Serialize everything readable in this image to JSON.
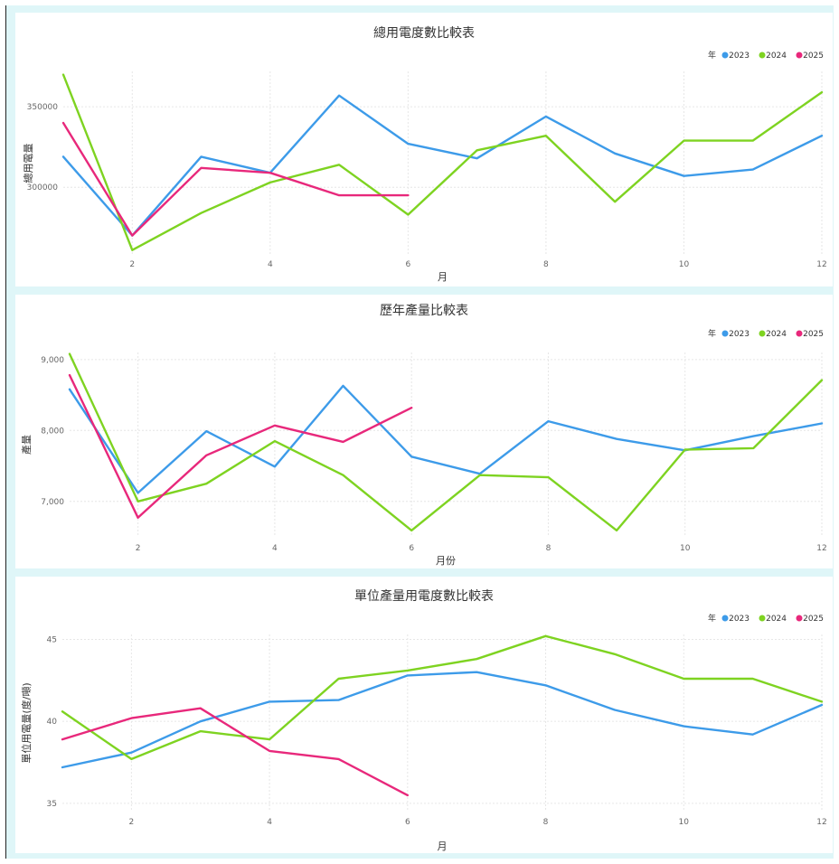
{
  "chart_data": [
    {
      "type": "line",
      "title": "總用電度數比較表",
      "xlabel": "月",
      "ylabel": "總用電量",
      "legend_title": "年",
      "xlim": [
        1,
        12
      ],
      "ylim": [
        258000,
        372000
      ],
      "x_ticks": [
        2,
        4,
        6,
        8,
        10,
        12
      ],
      "y_ticks": [
        300000,
        350000
      ],
      "y_tick_labels": [
        "300000",
        "350000"
      ],
      "grid": true,
      "legend_position": "top-right",
      "series": [
        {
          "name": "2023",
          "color": "#3d9be9",
          "x": [
            1,
            2,
            3,
            4,
            5,
            6,
            7,
            8,
            9,
            10,
            11,
            12
          ],
          "values": [
            319000,
            270000,
            319000,
            309000,
            357000,
            327000,
            318000,
            344000,
            321000,
            307000,
            311000,
            332000
          ]
        },
        {
          "name": "2024",
          "color": "#7ed321",
          "x": [
            1,
            2,
            3,
            4,
            5,
            6,
            7,
            8,
            9,
            10,
            11,
            12
          ],
          "values": [
            370000,
            261000,
            284000,
            303000,
            314000,
            283000,
            323000,
            332000,
            291000,
            329000,
            329000,
            359000
          ]
        },
        {
          "name": "2025",
          "color": "#e8287b",
          "x": [
            1,
            2,
            3,
            4,
            5,
            6
          ],
          "values": [
            340000,
            270000,
            312000,
            309000,
            295000,
            295000
          ]
        }
      ]
    },
    {
      "type": "line",
      "title": "歷年產量比較表",
      "xlabel": "月份",
      "ylabel": "產量",
      "legend_title": "年",
      "xlim": [
        1,
        12
      ],
      "ylim": [
        6500,
        9100
      ],
      "x_ticks": [
        2,
        4,
        6,
        8,
        10,
        12
      ],
      "y_ticks": [
        7000,
        8000,
        9000
      ],
      "y_tick_labels": [
        "7,000",
        "8,000",
        "9,000"
      ],
      "grid": true,
      "legend_position": "top-right",
      "series": [
        {
          "name": "2023",
          "color": "#3d9be9",
          "x": [
            1,
            2,
            3,
            4,
            5,
            6,
            7,
            8,
            9,
            10,
            11,
            12
          ],
          "values": [
            8580,
            7120,
            7990,
            7490,
            8630,
            7630,
            7390,
            8130,
            7880,
            7720,
            7920,
            8100
          ]
        },
        {
          "name": "2024",
          "color": "#7ed321",
          "x": [
            1,
            2,
            3,
            4,
            5,
            6,
            7,
            8,
            9,
            10,
            11,
            12
          ],
          "values": [
            9080,
            7000,
            7250,
            7850,
            7370,
            6590,
            7370,
            7340,
            6590,
            7730,
            7750,
            8710
          ]
        },
        {
          "name": "2025",
          "color": "#e8287b",
          "x": [
            1,
            2,
            3,
            4,
            5,
            6
          ],
          "values": [
            8780,
            6770,
            7650,
            8070,
            7840,
            8320
          ]
        }
      ]
    },
    {
      "type": "line",
      "title": "單位產量用電度數比較表",
      "xlabel": "月",
      "ylabel": "單位用電量(度/噸)",
      "legend_title": "年",
      "xlim": [
        1,
        12
      ],
      "ylim": [
        34.5,
        45.3
      ],
      "x_ticks": [
        2,
        4,
        6,
        8,
        10,
        12
      ],
      "y_ticks": [
        35,
        40,
        45
      ],
      "y_tick_labels": [
        "35",
        "40",
        "45"
      ],
      "grid": true,
      "legend_position": "top-right",
      "series": [
        {
          "name": "2023",
          "color": "#3d9be9",
          "x": [
            1,
            2,
            3,
            4,
            5,
            6,
            7,
            8,
            9,
            10,
            11,
            12
          ],
          "values": [
            37.2,
            38.1,
            40.0,
            41.2,
            41.3,
            42.8,
            43.0,
            42.2,
            40.7,
            39.7,
            39.2,
            41.0
          ]
        },
        {
          "name": "2024",
          "color": "#7ed321",
          "x": [
            1,
            2,
            3,
            4,
            5,
            6,
            7,
            8,
            9,
            10,
            11,
            12
          ],
          "values": [
            40.6,
            37.7,
            39.4,
            38.9,
            42.6,
            43.1,
            43.8,
            45.2,
            44.1,
            42.6,
            42.6,
            41.2
          ]
        },
        {
          "name": "2025",
          "color": "#e8287b",
          "x": [
            1,
            2,
            3,
            4,
            5,
            6
          ],
          "values": [
            38.9,
            40.2,
            40.8,
            38.2,
            37.7,
            35.5
          ]
        }
      ]
    }
  ]
}
